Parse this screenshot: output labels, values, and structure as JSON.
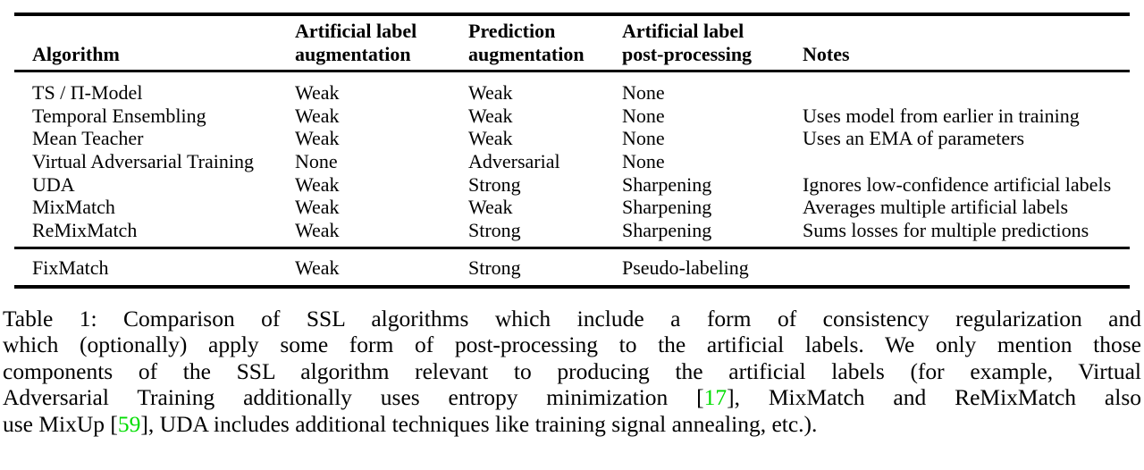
{
  "colors": {
    "citation_green": "#00dd00",
    "text": "#000000",
    "rule": "#000000"
  },
  "table": {
    "headers": {
      "algorithm": "Algorithm",
      "artificial_label_aug_line1": "Artificial label",
      "artificial_label_aug_line2": "augmentation",
      "prediction_aug_line1": "Prediction",
      "prediction_aug_line2": "augmentation",
      "post_processing_line1": "Artificial label",
      "post_processing_line2": "post-processing",
      "notes": "Notes"
    },
    "rows": [
      {
        "algorithm": "TS / Π-Model",
        "artificial_label_augmentation": "Weak",
        "prediction_augmentation": "Weak",
        "post_processing": "None",
        "notes": ""
      },
      {
        "algorithm": "Temporal Ensembling",
        "artificial_label_augmentation": "Weak",
        "prediction_augmentation": "Weak",
        "post_processing": "None",
        "notes": "Uses model from earlier in training"
      },
      {
        "algorithm": "Mean Teacher",
        "artificial_label_augmentation": "Weak",
        "prediction_augmentation": "Weak",
        "post_processing": "None",
        "notes": "Uses an EMA of parameters"
      },
      {
        "algorithm": "Virtual Adversarial Training",
        "artificial_label_augmentation": "None",
        "prediction_augmentation": "Adversarial",
        "post_processing": "None",
        "notes": ""
      },
      {
        "algorithm": "UDA",
        "artificial_label_augmentation": "Weak",
        "prediction_augmentation": "Strong",
        "post_processing": "Sharpening",
        "notes": "Ignores low-confidence artificial labels"
      },
      {
        "algorithm": "MixMatch",
        "artificial_label_augmentation": "Weak",
        "prediction_augmentation": "Weak",
        "post_processing": "Sharpening",
        "notes": "Averages multiple artificial labels"
      },
      {
        "algorithm": "ReMixMatch",
        "artificial_label_augmentation": "Weak",
        "prediction_augmentation": "Strong",
        "post_processing": "Sharpening",
        "notes": "Sums losses for multiple predictions"
      }
    ],
    "footer_row": {
      "algorithm": "FixMatch",
      "artificial_label_augmentation": "Weak",
      "prediction_augmentation": "Strong",
      "post_processing": "Pseudo-labeling",
      "notes": ""
    }
  },
  "caption": {
    "line1": "Table 1:  Comparison of SSL algorithms which include a form of consistency regularization and",
    "line2": "which (optionally) apply some form of post-processing to the artificial labels. We only mention those",
    "line3": "components of the SSL algorithm relevant to producing the artificial labels (for example, Virtual",
    "line4_before": "Adversarial Training additionally uses entropy minimization [",
    "cite1": "17",
    "line4_after": "], MixMatch and ReMixMatch also",
    "line5_before": "use MixUp [",
    "cite2": "59",
    "line5_after": "], UDA includes additional techniques like training signal annealing, etc.)."
  }
}
